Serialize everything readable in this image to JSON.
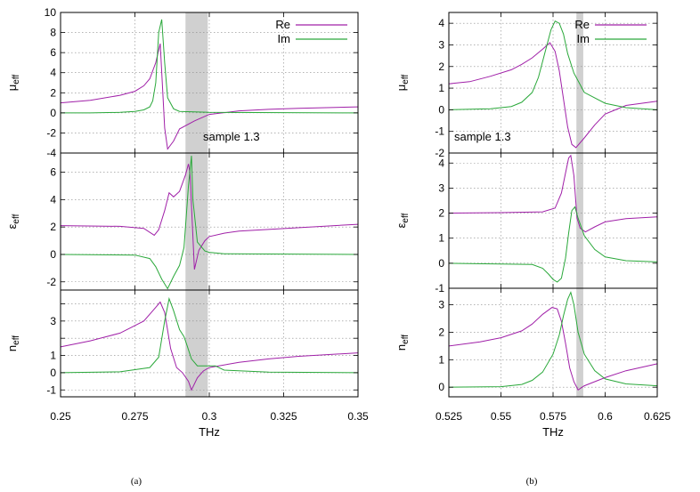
{
  "chart_data": [
    {
      "type": "line",
      "panel_caption": "(a)",
      "xlabel": "THz",
      "xlim": [
        0.25,
        0.35
      ],
      "x_ticks": [
        "0.25",
        "0.275",
        "0.3",
        "0.325",
        "0.35"
      ],
      "x_tick_values": [
        0.25,
        0.275,
        0.3,
        0.325,
        0.35
      ],
      "shaded_band": [
        0.292,
        0.2995
      ],
      "legend": [
        "Re",
        "Im"
      ],
      "legend_position": "top-right",
      "annotation": "sample 1.3",
      "grid": true,
      "subplots": [
        {
          "ylabel": "μ",
          "ylabel_sub": "eff",
          "ylim": [
            -4,
            10
          ],
          "y_ticks": [
            "-4",
            "-2",
            "0",
            "2",
            "4",
            "6",
            "8",
            "10"
          ],
          "y_tick_values": [
            -4,
            -2,
            0,
            2,
            4,
            6,
            8,
            10
          ],
          "series": [
            {
              "name": "Re",
              "x": [
                0.25,
                0.26,
                0.27,
                0.275,
                0.278,
                0.28,
                0.282,
                0.2835,
                0.285,
                0.286,
                0.288,
                0.29,
                0.295,
                0.3,
                0.31,
                0.32,
                0.33,
                0.35
              ],
              "values": [
                1.0,
                1.25,
                1.75,
                2.15,
                2.7,
                3.4,
                5.0,
                6.9,
                -1.5,
                -3.6,
                -2.8,
                -1.6,
                -0.8,
                -0.15,
                0.2,
                0.35,
                0.45,
                0.6
              ]
            },
            {
              "name": "Im",
              "x": [
                0.25,
                0.26,
                0.27,
                0.275,
                0.278,
                0.28,
                0.281,
                0.282,
                0.283,
                0.284,
                0.285,
                0.286,
                0.288,
                0.29,
                0.3,
                0.35
              ],
              "values": [
                0.0,
                0.0,
                0.05,
                0.15,
                0.3,
                0.6,
                1.2,
                3.0,
                8.0,
                9.3,
                5.0,
                1.5,
                0.4,
                0.15,
                0.05,
                0.0
              ]
            }
          ]
        },
        {
          "ylabel": "ε",
          "ylabel_sub": "eff",
          "ylim": [
            -2.6,
            7.4
          ],
          "y_ticks": [
            "-2",
            "0",
            "2",
            "4",
            "6"
          ],
          "y_tick_values": [
            -2,
            0,
            2,
            4,
            6
          ],
          "series": [
            {
              "name": "Re",
              "x": [
                0.25,
                0.27,
                0.278,
                0.2815,
                0.283,
                0.285,
                0.2865,
                0.288,
                0.29,
                0.292,
                0.293,
                0.2935,
                0.295,
                0.2965,
                0.2985,
                0.3,
                0.305,
                0.31,
                0.35
              ],
              "values": [
                2.1,
                2.05,
                1.9,
                1.4,
                1.8,
                3.2,
                4.5,
                4.2,
                4.6,
                5.8,
                6.6,
                6.0,
                -1.1,
                0.3,
                1.0,
                1.3,
                1.55,
                1.7,
                2.2
              ]
            },
            {
              "name": "Im",
              "x": [
                0.25,
                0.275,
                0.28,
                0.282,
                0.284,
                0.286,
                0.288,
                0.29,
                0.2915,
                0.293,
                0.294,
                0.2945,
                0.296,
                0.2985,
                0.3,
                0.305,
                0.35
              ],
              "values": [
                0.0,
                -0.05,
                -0.3,
                -0.9,
                -1.8,
                -2.5,
                -1.6,
                -0.8,
                0.5,
                5.0,
                7.2,
                4.0,
                0.9,
                0.25,
                0.15,
                0.05,
                0.0
              ]
            }
          ]
        },
        {
          "ylabel": "n",
          "ylabel_sub": "eff",
          "ylim": [
            -1.4,
            4.8
          ],
          "y_ticks": [
            "-1",
            "0",
            "1",
            "2",
            "3",
            "4"
          ],
          "y_tick_values": [
            -1,
            0,
            1,
            2,
            3,
            4
          ],
          "y_tick_labels_shown": [
            "-1",
            "0",
            "1",
            "",
            "3",
            ""
          ],
          "series": [
            {
              "name": "Re",
              "x": [
                0.25,
                0.26,
                0.27,
                0.278,
                0.282,
                0.2835,
                0.285,
                0.287,
                0.289,
                0.291,
                0.293,
                0.294,
                0.296,
                0.298,
                0.3,
                0.31,
                0.32,
                0.33,
                0.35
              ],
              "values": [
                1.5,
                1.85,
                2.3,
                3.0,
                3.8,
                4.1,
                3.5,
                1.4,
                0.3,
                0.0,
                -0.5,
                -1.0,
                -0.3,
                0.1,
                0.3,
                0.6,
                0.8,
                0.95,
                1.15
              ]
            },
            {
              "name": "Im",
              "x": [
                0.25,
                0.27,
                0.28,
                0.283,
                0.285,
                0.2865,
                0.288,
                0.29,
                0.2915,
                0.2925,
                0.294,
                0.296,
                0.3,
                0.302,
                0.305,
                0.32,
                0.35
              ],
              "values": [
                0.0,
                0.05,
                0.3,
                0.9,
                3.0,
                4.3,
                3.6,
                2.5,
                2.1,
                1.6,
                0.8,
                0.4,
                0.4,
                0.4,
                0.15,
                0.03,
                0.0
              ]
            }
          ]
        }
      ]
    },
    {
      "type": "line",
      "panel_caption": "(b)",
      "xlabel": "THz",
      "xlim": [
        0.525,
        0.625
      ],
      "x_ticks": [
        "0.525",
        "0.55",
        "0.575",
        "0.6",
        "0.625"
      ],
      "x_tick_values": [
        0.525,
        0.55,
        0.575,
        0.6,
        0.625
      ],
      "shaded_band": [
        0.5862,
        0.5895
      ],
      "legend": [
        "Re",
        "Im"
      ],
      "legend_position": "top-right",
      "annotation": "sample 1.3",
      "grid": true,
      "subplots": [
        {
          "ylabel": "μ",
          "ylabel_sub": "eff",
          "ylim": [
            -2,
            4.5
          ],
          "y_ticks": [
            "-2",
            "-1",
            "0",
            "1",
            "2",
            "3",
            "4"
          ],
          "y_tick_values": [
            -2,
            -1,
            0,
            1,
            2,
            3,
            4
          ],
          "series": [
            {
              "name": "Re",
              "x": [
                0.525,
                0.535,
                0.545,
                0.555,
                0.56,
                0.565,
                0.57,
                0.5735,
                0.576,
                0.578,
                0.58,
                0.582,
                0.584,
                0.586,
                0.59,
                0.595,
                0.6,
                0.61,
                0.625
              ],
              "values": [
                1.2,
                1.3,
                1.55,
                1.85,
                2.1,
                2.4,
                2.8,
                3.1,
                2.7,
                1.8,
                0.5,
                -0.8,
                -1.6,
                -1.75,
                -1.3,
                -0.7,
                -0.2,
                0.2,
                0.4
              ]
            },
            {
              "name": "Im",
              "x": [
                0.525,
                0.545,
                0.555,
                0.56,
                0.565,
                0.568,
                0.571,
                0.574,
                0.576,
                0.578,
                0.58,
                0.582,
                0.585,
                0.59,
                0.6,
                0.61,
                0.625
              ],
              "values": [
                0.0,
                0.05,
                0.15,
                0.35,
                0.8,
                1.5,
                2.6,
                3.7,
                4.1,
                4.0,
                3.5,
                2.6,
                1.7,
                0.8,
                0.3,
                0.1,
                0.0
              ]
            }
          ]
        },
        {
          "ylabel": "ε",
          "ylabel_sub": "eff",
          "ylim": [
            -1,
            4.4
          ],
          "y_ticks": [
            "-1",
            "0",
            "1",
            "2",
            "3",
            "4"
          ],
          "y_tick_values": [
            -1,
            0,
            1,
            2,
            3,
            4
          ],
          "series": [
            {
              "name": "Re",
              "x": [
                0.525,
                0.55,
                0.57,
                0.576,
                0.579,
                0.581,
                0.5825,
                0.5835,
                0.585,
                0.5865,
                0.588,
                0.5905,
                0.595,
                0.6,
                0.61,
                0.625
              ],
              "values": [
                2.0,
                2.02,
                2.05,
                2.2,
                2.8,
                3.6,
                4.2,
                4.3,
                3.5,
                1.8,
                1.4,
                1.25,
                1.45,
                1.65,
                1.78,
                1.85
              ]
            },
            {
              "name": "Im",
              "x": [
                0.525,
                0.565,
                0.57,
                0.573,
                0.575,
                0.577,
                0.579,
                0.581,
                0.5825,
                0.584,
                0.5855,
                0.587,
                0.59,
                0.595,
                0.6,
                0.61,
                0.625
              ],
              "values": [
                0.0,
                -0.05,
                -0.2,
                -0.45,
                -0.65,
                -0.75,
                -0.6,
                0.2,
                1.2,
                2.1,
                2.25,
                1.8,
                1.1,
                0.55,
                0.25,
                0.1,
                0.05
              ]
            }
          ]
        },
        {
          "ylabel": "n",
          "ylabel_sub": "eff",
          "ylim": [
            -0.35,
            3.6
          ],
          "y_ticks": [
            "0",
            "1",
            "2",
            "3"
          ],
          "y_tick_values": [
            0,
            1,
            2,
            3
          ],
          "series": [
            {
              "name": "Re",
              "x": [
                0.525,
                0.54,
                0.55,
                0.56,
                0.565,
                0.57,
                0.5745,
                0.577,
                0.579,
                0.581,
                0.583,
                0.585,
                0.587,
                0.59,
                0.595,
                0.6,
                0.61,
                0.625
              ],
              "values": [
                1.5,
                1.65,
                1.8,
                2.05,
                2.3,
                2.65,
                2.9,
                2.85,
                2.4,
                1.6,
                0.7,
                0.2,
                -0.1,
                0.05,
                0.2,
                0.35,
                0.6,
                0.85
              ]
            },
            {
              "name": "Im",
              "x": [
                0.525,
                0.55,
                0.56,
                0.565,
                0.57,
                0.575,
                0.578,
                0.58,
                0.582,
                0.5835,
                0.585,
                0.587,
                0.59,
                0.595,
                0.6,
                0.61,
                0.625
              ],
              "values": [
                0.0,
                0.02,
                0.1,
                0.25,
                0.55,
                1.2,
                1.9,
                2.6,
                3.2,
                3.45,
                3.0,
                2.0,
                1.2,
                0.6,
                0.3,
                0.12,
                0.05
              ]
            }
          ]
        }
      ]
    }
  ],
  "colors": {
    "re": "#a020a8",
    "im": "#2aa83a",
    "band": "#d0d0d0"
  }
}
